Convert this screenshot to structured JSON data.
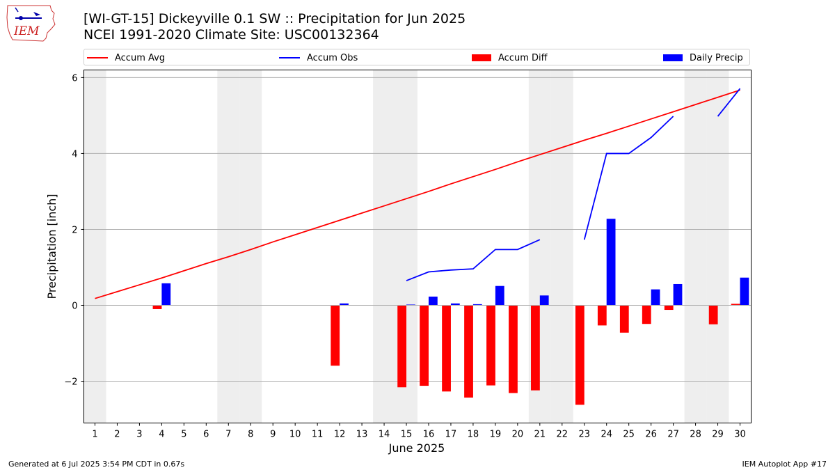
{
  "title": "[WI-GT-15] Dickeyville 0.1 SW :: Precipitation for Jun 2025",
  "subtitle": "NCEI 1991-2020 Climate Site: USC00132364",
  "logo_text": "IEM",
  "footer_left": "Generated at 6 Jul 2025 3:54 PM CDT in 0.67s",
  "footer_right": "IEM Autoplot App #17",
  "colors": {
    "accum_avg": "#ff0000",
    "accum_obs": "#0000ff",
    "accum_diff": "#ff0000",
    "daily_precip": "#0000ff",
    "weekend_shade": "#eeeeee",
    "grid": "#b0b0b0"
  },
  "chart_data": {
    "type": "bar",
    "xlabel": "June 2025",
    "ylabel": "Precipitation [inch]",
    "xlim": [
      0.5,
      30.5
    ],
    "ylim": [
      -3.1,
      6.2
    ],
    "yticks": [
      -2,
      0,
      2,
      4,
      6
    ],
    "ytick_labels": [
      "−2",
      "0",
      "2",
      "4",
      "6"
    ],
    "x": [
      1,
      2,
      3,
      4,
      5,
      6,
      7,
      8,
      9,
      10,
      11,
      12,
      13,
      14,
      15,
      16,
      17,
      18,
      19,
      20,
      21,
      22,
      23,
      24,
      25,
      26,
      27,
      28,
      29,
      30
    ],
    "grid": "horizontal",
    "legend_position": "top",
    "weekend_days": [
      1,
      7,
      8,
      14,
      15,
      21,
      22,
      28,
      29
    ],
    "series": [
      {
        "name": "Accum Avg",
        "kind": "line",
        "values": [
          0.18,
          0.36,
          0.54,
          0.72,
          0.91,
          1.1,
          1.28,
          1.47,
          1.67,
          1.86,
          2.05,
          2.24,
          2.43,
          2.62,
          2.81,
          3.0,
          3.2,
          3.39,
          3.58,
          3.78,
          3.97,
          4.16,
          4.35,
          4.53,
          4.72,
          4.91,
          5.1,
          5.29,
          5.48,
          5.67
        ]
      },
      {
        "name": "Accum Obs",
        "kind": "line",
        "values": [
          null,
          null,
          null,
          null,
          null,
          null,
          null,
          null,
          null,
          null,
          null,
          null,
          null,
          null,
          0.65,
          0.88,
          0.93,
          0.96,
          1.47,
          1.47,
          1.73,
          null,
          1.73,
          4.0,
          4.0,
          4.42,
          4.98,
          null,
          4.98,
          5.71
        ]
      },
      {
        "name": "Accum Diff",
        "kind": "bar",
        "values": [
          null,
          null,
          null,
          -0.1,
          null,
          null,
          null,
          null,
          null,
          null,
          null,
          -1.59,
          null,
          null,
          -2.16,
          -2.12,
          -2.27,
          -2.43,
          -2.11,
          -2.31,
          -2.24,
          null,
          -2.62,
          -0.53,
          -0.72,
          -0.49,
          -0.12,
          null,
          -0.5,
          0.04
        ]
      },
      {
        "name": "Daily Precip",
        "kind": "bar",
        "values": [
          null,
          null,
          null,
          0.58,
          null,
          null,
          null,
          null,
          null,
          null,
          null,
          0.05,
          null,
          null,
          0.02,
          0.23,
          0.05,
          0.03,
          0.51,
          0.0,
          0.26,
          null,
          0.0,
          2.28,
          0.0,
          0.42,
          0.56,
          null,
          0.0,
          0.73
        ]
      }
    ]
  }
}
